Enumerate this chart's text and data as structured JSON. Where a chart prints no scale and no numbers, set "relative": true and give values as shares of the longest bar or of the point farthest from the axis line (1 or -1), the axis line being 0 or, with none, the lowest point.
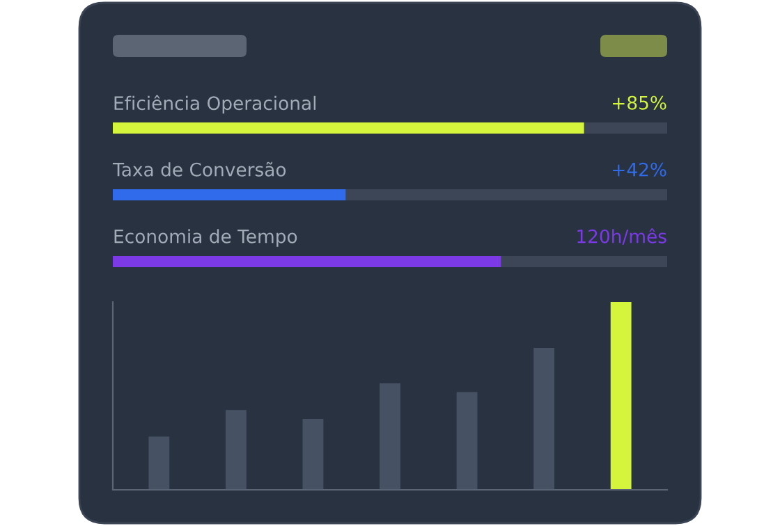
{
  "chart_data": [
    {
      "type": "bar",
      "orientation": "horizontal",
      "categories": [
        "Eficiência Operacional",
        "Taxa de Conversão",
        "Economia de Tempo"
      ],
      "values": [
        85,
        42,
        70
      ],
      "colors": [
        "#d4f53c",
        "#2f6bea",
        "#7b3ae6"
      ],
      "value_labels": [
        "+85%",
        "+42%",
        null
      ],
      "annotations": [
        "120h/mês"
      ],
      "xlim": [
        0,
        100
      ]
    },
    {
      "type": "bar",
      "categories": [
        null,
        null,
        null,
        null,
        null,
        null,
        null
      ],
      "values": [
        0.283,
        0.425,
        0.378,
        0.567,
        0.52,
        0.756,
        1.0
      ],
      "colors": [
        "#465264",
        "#465264",
        "#465264",
        "#465264",
        "#465264",
        "#465264",
        "#d4f53c"
      ],
      "relative": true
    }
  ]
}
